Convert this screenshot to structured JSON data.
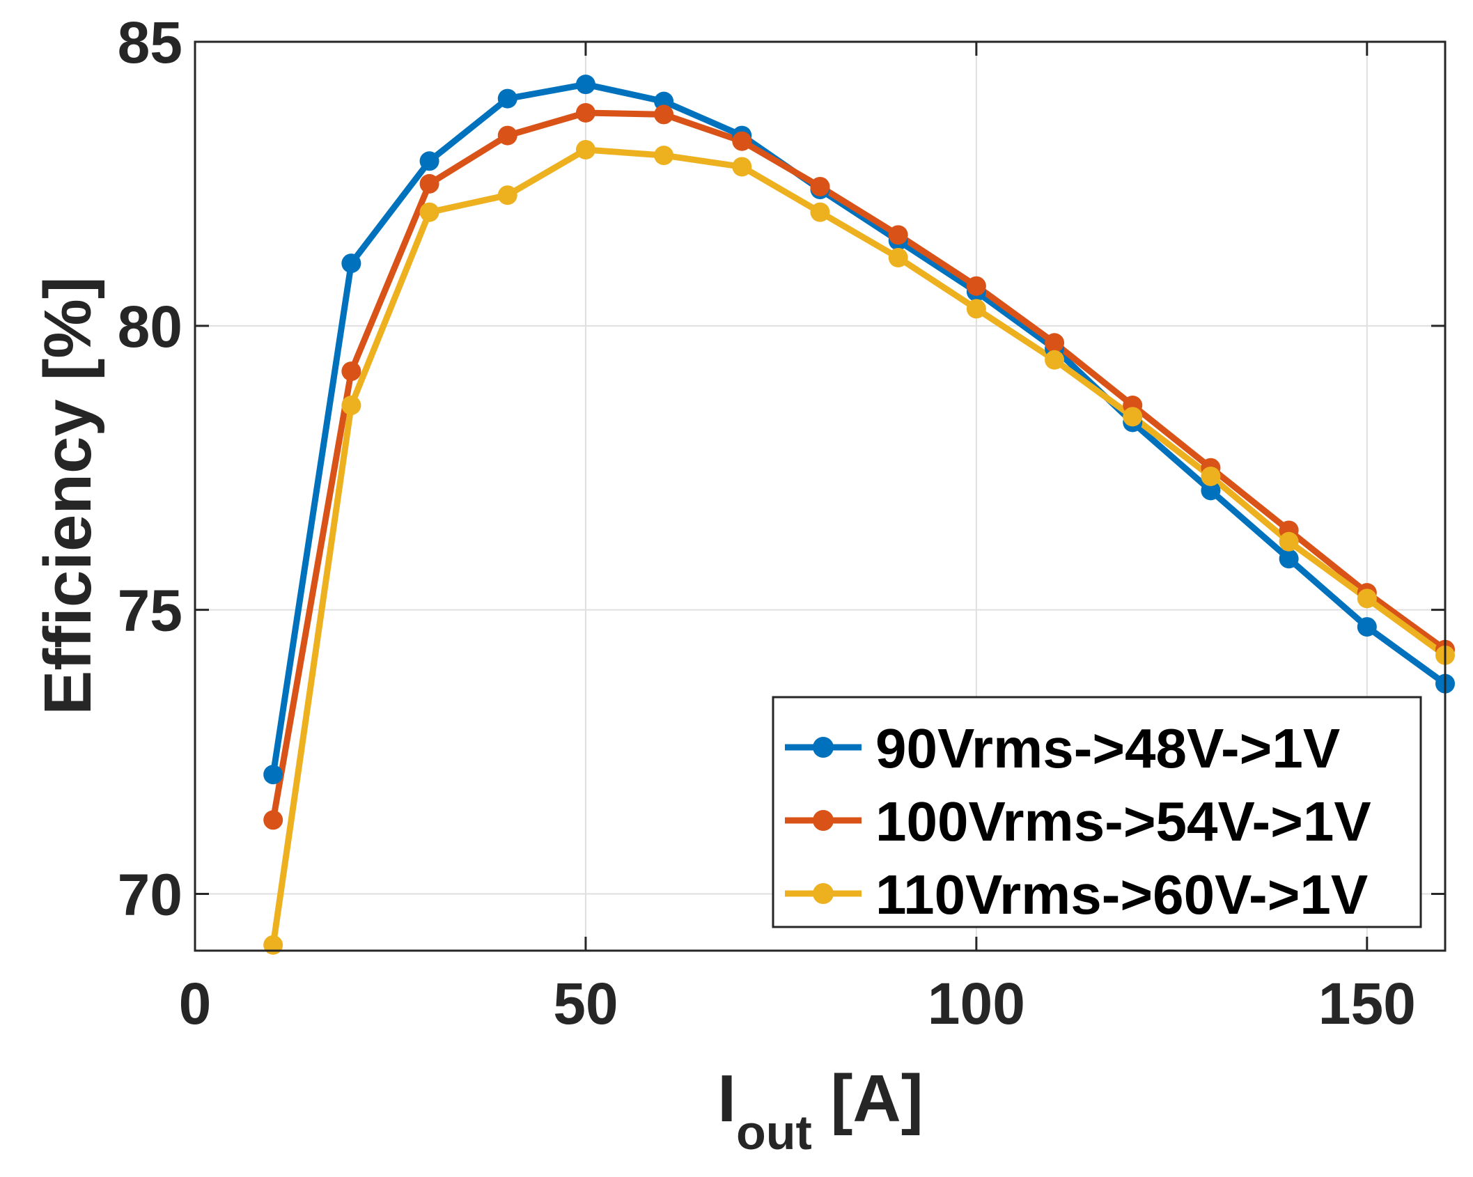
{
  "chart_data": {
    "type": "line",
    "xlabel_main": "I",
    "xlabel_sub": "out",
    "xlabel_unit": " [A]",
    "ylabel": "Efficiency [%]",
    "xlim": [
      0,
      160
    ],
    "ylim": [
      69,
      85
    ],
    "xticks": [
      0,
      50,
      100,
      150
    ],
    "yticks": [
      70,
      75,
      80,
      85
    ],
    "grid": true,
    "legend_position": "bottom-right",
    "x": [
      10,
      20,
      30,
      40,
      50,
      60,
      70,
      80,
      90,
      100,
      110,
      120,
      130,
      140,
      150,
      160
    ],
    "series": [
      {
        "name": "90Vrms->48V->1V",
        "color": "#0072BD",
        "values": [
          72.1,
          81.1,
          82.9,
          84.0,
          84.25,
          83.95,
          83.35,
          82.4,
          81.5,
          80.6,
          79.6,
          78.3,
          77.1,
          75.9,
          74.7,
          73.7
        ]
      },
      {
        "name": "100Vrms->54V->1V",
        "color": "#D95319",
        "values": [
          71.3,
          79.2,
          82.5,
          83.35,
          83.75,
          83.72,
          83.25,
          82.45,
          81.6,
          80.7,
          79.7,
          78.6,
          77.5,
          76.4,
          75.3,
          74.3
        ]
      },
      {
        "name": "110Vrms->60V->1V",
        "color": "#EDB120",
        "values": [
          69.1,
          78.6,
          82.0,
          82.3,
          83.1,
          83.0,
          82.8,
          82.0,
          81.2,
          80.3,
          79.4,
          78.4,
          77.35,
          76.2,
          75.2,
          74.2
        ]
      }
    ]
  }
}
